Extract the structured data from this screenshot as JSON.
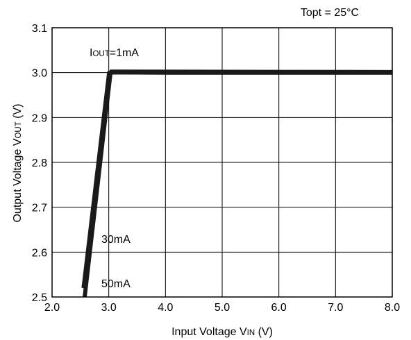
{
  "chart_data": {
    "type": "line",
    "title": "",
    "condition": "Topt = 25°C",
    "xlabel": {
      "main": "Input Voltage V",
      "sub": "IN",
      "unit": " (V)"
    },
    "ylabel": {
      "main": "Output Voltage V",
      "sub": "OUT",
      "unit": " (V)"
    },
    "xlim": [
      2.0,
      8.0
    ],
    "ylim": [
      2.5,
      3.1
    ],
    "x_ticks": [
      "2.0",
      "3.0",
      "4.0",
      "5.0",
      "6.0",
      "7.0",
      "8.0"
    ],
    "y_ticks": [
      "2.5",
      "2.6",
      "2.7",
      "2.8",
      "2.9",
      "3.0",
      "3.1"
    ],
    "grid": true,
    "annotations": [
      {
        "id": "iout-1ma",
        "prefix": "I",
        "sub": "OUT",
        "text": "=1mA"
      },
      {
        "id": "iout-30ma",
        "text": "30mA"
      },
      {
        "id": "iout-50ma",
        "text": "50mA"
      }
    ],
    "series": [
      {
        "x": [
          2.55,
          3.0,
          8.0
        ],
        "y": [
          2.52,
          3.0,
          3.0
        ]
      },
      {
        "x": [
          2.57,
          3.02,
          4.0,
          6.0,
          8.0
        ],
        "y": [
          2.5,
          3.0,
          2.999,
          2.999,
          2.999
        ]
      },
      {
        "x": [
          2.58,
          3.04,
          8.0
        ],
        "y": [
          2.5,
          3.003,
          3.002
        ]
      }
    ]
  }
}
